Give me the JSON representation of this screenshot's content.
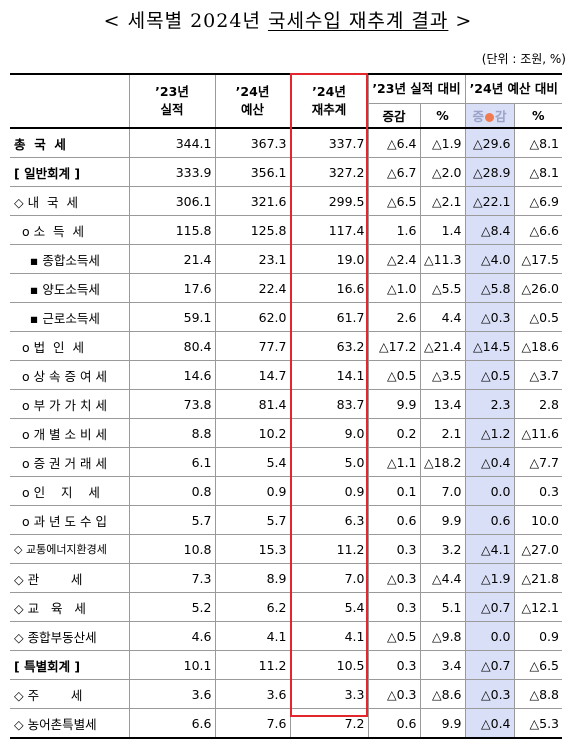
{
  "title": {
    "open": "< ",
    "plain": "세목별 2024년 ",
    "underlined": "국세수입 재추계 결과",
    "close": " >"
  },
  "unit": "(단위 : 조원, %)",
  "headers": {
    "col_23": "’23년\n실적",
    "col_24b": "’24년\n예산",
    "col_24r": "’24년\n재추계",
    "grp_23": "’23년 실적 대비",
    "grp_24": "’24년 예산 대비",
    "diff": "증감",
    "diff_24_a": "증",
    "diff_24_b": "감",
    "pct": "%"
  },
  "rows": [
    {
      "label": "총  국  세",
      "bold": true,
      "v23": "344.1",
      "v24b": "367.3",
      "v24r": "337.7",
      "d23": "△6.4",
      "p23": "△1.9",
      "d24": "△29.6",
      "p24": "△8.1"
    },
    {
      "label": "[ 일반회계 ]",
      "bold": true,
      "v23": "333.9",
      "v24b": "356.1",
      "v24r": "327.2",
      "d23": "△6.7",
      "p23": "△2.0",
      "d24": "△28.9",
      "p24": "△8.1"
    },
    {
      "label": "◇ 내  국  세",
      "bold": false,
      "v23": "306.1",
      "v24b": "321.6",
      "v24r": "299.5",
      "d23": "△6.5",
      "p23": "△2.1",
      "d24": "△22.1",
      "p24": "△6.9"
    },
    {
      "label": "  o 소  득  세",
      "bold": false,
      "v23": "115.8",
      "v24b": "125.8",
      "v24r": "117.4",
      "d23": "1.6",
      "p23": "1.4",
      "d24": "△8.4",
      "p24": "△6.6"
    },
    {
      "label": "    ▪ 종합소득세",
      "bold": false,
      "v23": "21.4",
      "v24b": "23.1",
      "v24r": "19.0",
      "d23": "△2.4",
      "p23": "△11.3",
      "d24": "△4.0",
      "p24": "△17.5"
    },
    {
      "label": "    ▪ 양도소득세",
      "bold": false,
      "v23": "17.6",
      "v24b": "22.4",
      "v24r": "16.6",
      "d23": "△1.0",
      "p23": "△5.5",
      "d24": "△5.8",
      "p24": "△26.0"
    },
    {
      "label": "    ▪ 근로소득세",
      "bold": false,
      "v23": "59.1",
      "v24b": "62.0",
      "v24r": "61.7",
      "d23": "2.6",
      "p23": "4.4",
      "d24": "△0.3",
      "p24": "△0.5"
    },
    {
      "label": "  o 법  인  세",
      "bold": false,
      "v23": "80.4",
      "v24b": "77.7",
      "v24r": "63.2",
      "d23": "△17.2",
      "p23": "△21.4",
      "d24": "△14.5",
      "p24": "△18.6"
    },
    {
      "label": "  o 상 속 증 여 세",
      "bold": false,
      "v23": "14.6",
      "v24b": "14.7",
      "v24r": "14.1",
      "d23": "△0.5",
      "p23": "△3.5",
      "d24": "△0.5",
      "p24": "△3.7"
    },
    {
      "label": "  o 부 가 가 치 세",
      "bold": false,
      "v23": "73.8",
      "v24b": "81.4",
      "v24r": "83.7",
      "d23": "9.9",
      "p23": "13.4",
      "d24": "2.3",
      "p24": "2.8"
    },
    {
      "label": "  o 개 별 소 비 세",
      "bold": false,
      "v23": "8.8",
      "v24b": "10.2",
      "v24r": "9.0",
      "d23": "0.2",
      "p23": "2.1",
      "d24": "△1.2",
      "p24": "△11.6"
    },
    {
      "label": "  o 증 권 거 래 세",
      "bold": false,
      "v23": "6.1",
      "v24b": "5.4",
      "v24r": "5.0",
      "d23": "△1.1",
      "p23": "△18.2",
      "d24": "△0.4",
      "p24": "△7.7"
    },
    {
      "label": "  o 인    지    세",
      "bold": false,
      "v23": "0.8",
      "v24b": "0.9",
      "v24r": "0.9",
      "d23": "0.1",
      "p23": "7.0",
      "d24": "0.0",
      "p24": "0.3"
    },
    {
      "label": "  o 과 년 도 수 입",
      "bold": false,
      "v23": "5.7",
      "v24b": "5.7",
      "v24r": "6.3",
      "d23": "0.6",
      "p23": "9.9",
      "d24": "0.6",
      "p24": "10.0"
    },
    {
      "label": "◇ 교통에너지환경세",
      "bold": false,
      "small": true,
      "v23": "10.8",
      "v24b": "15.3",
      "v24r": "11.2",
      "d23": "0.3",
      "p23": "3.2",
      "d24": "△4.1",
      "p24": "△27.0"
    },
    {
      "label": "◇ 관        세",
      "bold": false,
      "v23": "7.3",
      "v24b": "8.9",
      "v24r": "7.0",
      "d23": "△0.3",
      "p23": "△4.4",
      "d24": "△1.9",
      "p24": "△21.8"
    },
    {
      "label": "◇ 교   육   세",
      "bold": false,
      "v23": "5.2",
      "v24b": "6.2",
      "v24r": "5.4",
      "d23": "0.3",
      "p23": "5.1",
      "d24": "△0.7",
      "p24": "△12.1"
    },
    {
      "label": "◇ 종합부동산세",
      "bold": false,
      "v23": "4.6",
      "v24b": "4.1",
      "v24r": "4.1",
      "d23": "△0.5",
      "p23": "△9.8",
      "d24": "0.0",
      "p24": "0.9"
    },
    {
      "label": "[ 특별회계 ]",
      "bold": true,
      "v23": "10.1",
      "v24b": "11.2",
      "v24r": "10.5",
      "d23": "0.3",
      "p23": "3.4",
      "d24": "△0.7",
      "p24": "△6.5"
    },
    {
      "label": "◇ 주        세",
      "bold": false,
      "v23": "3.6",
      "v24b": "3.6",
      "v24r": "3.3",
      "d23": "△0.3",
      "p23": "△8.6",
      "d24": "△0.3",
      "p24": "△8.8"
    },
    {
      "label": "◇ 농어촌특별세",
      "bold": false,
      "v23": "6.6",
      "v24b": "7.6",
      "v24r": "7.2",
      "d23": "0.6",
      "p23": "9.9",
      "d24": "△0.4",
      "p24": "△5.3"
    }
  ]
}
